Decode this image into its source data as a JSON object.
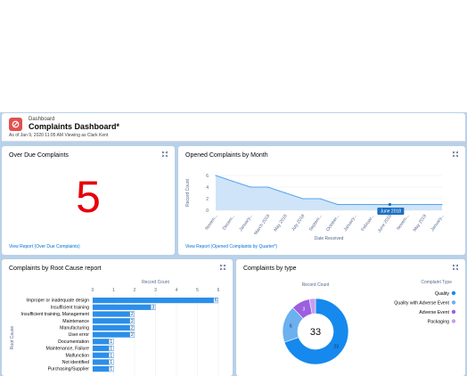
{
  "header": {
    "object_label": "Dashboard",
    "title": "Complaints Dashboard*",
    "meta": "As of Jan 9, 2020 11:05 AM Viewing as Clark Kent"
  },
  "overdue": {
    "title": "Over Due Complaints",
    "value": "5",
    "link": "View Report (Over Due Complaints)",
    "value_color": "#e8000b"
  },
  "opened": {
    "title": "Opened Complaints by Month",
    "link": "View Report (Opened Complaints by Quarter*)",
    "ylabel": "Record Count",
    "xlabel": "Date Received",
    "tooltip": "June 2018"
  },
  "root": {
    "title": "Complaints by Root Cause report",
    "xlabel": "Record Count",
    "ylabel": "Root Cause"
  },
  "type": {
    "title": "Complaints by type",
    "axis_label": "Record Count",
    "center": "33",
    "legend_title": "Complaint Type"
  },
  "colors": {
    "accent": "#1589ee",
    "bar": "#2c8ee8",
    "area": "#cfe4f8",
    "line": "#54a4ec"
  },
  "chart_data": [
    {
      "type": "area",
      "title": "Opened Complaints by Month",
      "xlabel": "Date Received",
      "ylabel": "Record Count",
      "categories": [
        "Novem...",
        "Decem...",
        "January...",
        "March 2018",
        "May 2018",
        "July 2018",
        "Septem...",
        "October...",
        "January...",
        "Februar...",
        "June 2018",
        "Novem...",
        "May 2019",
        "January..."
      ],
      "values": [
        6,
        5,
        4,
        4,
        3,
        2,
        2,
        1,
        1,
        1,
        1,
        1,
        1,
        1
      ],
      "ylim": [
        0,
        6
      ],
      "yticks": [
        0,
        2,
        4,
        6
      ]
    },
    {
      "type": "bar",
      "title": "Complaints by Root Cause report",
      "xlabel": "Record Count",
      "ylabel": "Root Cause",
      "categories": [
        "Improper or inadequate design",
        "Insufficient training",
        "Insufficient training, Management",
        "Maintenance",
        "Manufacturing",
        "User error",
        "Documentation",
        "Maintenance, Failure",
        "Malfunction",
        "Not identified",
        "Purchasing/Supplier"
      ],
      "values": [
        6,
        3,
        2,
        2,
        2,
        2,
        1,
        1,
        1,
        1,
        1
      ],
      "xlim": [
        0,
        6
      ],
      "xticks": [
        0,
        1,
        2,
        3,
        4,
        5,
        6
      ]
    },
    {
      "type": "pie",
      "title": "Complaints by type",
      "categories": [
        "Quality",
        "Quality with Adverse Event",
        "Adverse Event",
        "Packaging"
      ],
      "values": [
        23,
        6,
        3,
        1
      ],
      "colors": [
        "#1589ee",
        "#6bb0ef",
        "#9b5fe0",
        "#c79df0"
      ],
      "total": 33
    }
  ]
}
